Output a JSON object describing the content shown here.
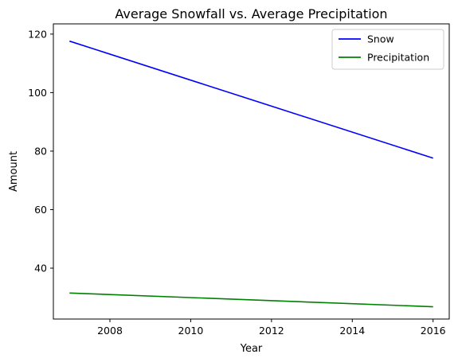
{
  "chart_data": {
    "type": "line",
    "title": "Average Snowfall vs. Average Precipitation",
    "xlabel": "Year",
    "ylabel": "Amount",
    "xlim": [
      2006.6,
      2016.4
    ],
    "ylim": [
      22.6,
      123.5
    ],
    "x_ticks": [
      2008,
      2010,
      2012,
      2014,
      2016
    ],
    "y_ticks": [
      40,
      60,
      80,
      100,
      120
    ],
    "x_tick_labels": [
      "2008",
      "2010",
      "2012",
      "2014",
      "2016"
    ],
    "y_tick_labels": [
      "40",
      "60",
      "80",
      "100",
      "120"
    ],
    "grid": false,
    "legend_position": "top-right",
    "series": [
      {
        "name": "Snow",
        "color": "#0000ff",
        "x": [
          2007,
          2016
        ],
        "y": [
          117.6,
          77.6
        ]
      },
      {
        "name": "Precipitation",
        "color": "#008000",
        "x": [
          2007,
          2016
        ],
        "y": [
          31.5,
          26.8
        ]
      }
    ]
  }
}
